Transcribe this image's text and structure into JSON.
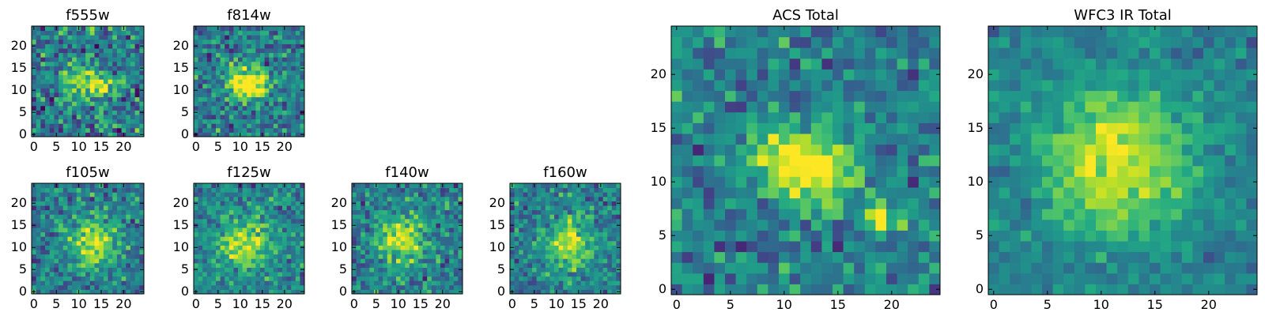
{
  "chart_data": [
    {
      "type": "heatmap",
      "title": "f555w",
      "xlim": [
        0,
        24
      ],
      "ylim": [
        0,
        24
      ],
      "xticks": [
        0,
        5,
        10,
        15,
        20
      ],
      "yticks": [
        0,
        5,
        10,
        15,
        20
      ],
      "source_centers": [
        [
          10,
          12,
          2.2
        ],
        [
          15,
          11,
          1.8
        ]
      ],
      "peak_intensity": 0.9,
      "noise_level": 0.28,
      "colormap": "viridis"
    },
    {
      "type": "heatmap",
      "title": "f814w",
      "xlim": [
        0,
        24
      ],
      "ylim": [
        0,
        24
      ],
      "xticks": [
        0,
        5,
        10,
        15,
        20
      ],
      "yticks": [
        0,
        5,
        10,
        15,
        20
      ],
      "source_centers": [
        [
          10.5,
          12,
          2.6
        ],
        [
          14,
          11,
          2.0
        ]
      ],
      "peak_intensity": 0.95,
      "noise_level": 0.25,
      "colormap": "viridis"
    },
    {
      "type": "heatmap",
      "title": "f105w",
      "xlim": [
        0,
        24
      ],
      "ylim": [
        0,
        24
      ],
      "xticks": [
        0,
        5,
        10,
        15,
        20
      ],
      "yticks": [
        0,
        5,
        10,
        15,
        20
      ],
      "source_centers": [
        [
          13,
          11,
          4.0
        ]
      ],
      "peak_intensity": 0.85,
      "noise_level": 0.22,
      "colormap": "viridis"
    },
    {
      "type": "heatmap",
      "title": "f125w",
      "xlim": [
        0,
        24
      ],
      "ylim": [
        0,
        24
      ],
      "xticks": [
        0,
        5,
        10,
        15,
        20
      ],
      "yticks": [
        0,
        5,
        10,
        15,
        20
      ],
      "source_centers": [
        [
          11,
          11,
          4.5
        ]
      ],
      "peak_intensity": 0.85,
      "noise_level": 0.22,
      "colormap": "viridis"
    },
    {
      "type": "heatmap",
      "title": "f140w",
      "xlim": [
        0,
        24
      ],
      "ylim": [
        0,
        24
      ],
      "xticks": [
        0,
        5,
        10,
        15,
        20
      ],
      "yticks": [
        0,
        5,
        10,
        15,
        20
      ],
      "source_centers": [
        [
          11,
          12,
          4.0
        ]
      ],
      "peak_intensity": 0.85,
      "noise_level": 0.22,
      "colormap": "viridis"
    },
    {
      "type": "heatmap",
      "title": "f160w",
      "xlim": [
        0,
        24
      ],
      "ylim": [
        0,
        24
      ],
      "xticks": [
        0,
        5,
        10,
        15,
        20
      ],
      "yticks": [
        0,
        5,
        10,
        15,
        20
      ],
      "source_centers": [
        [
          13,
          11,
          4.0
        ]
      ],
      "peak_intensity": 0.85,
      "noise_level": 0.22,
      "colormap": "viridis"
    },
    {
      "type": "heatmap",
      "title": "ACS Total",
      "xlim": [
        0,
        24
      ],
      "ylim": [
        0,
        24
      ],
      "xticks": [
        0,
        5,
        10,
        15,
        20
      ],
      "yticks": [
        0,
        5,
        10,
        15,
        20
      ],
      "source_centers": [
        [
          10,
          12,
          2.4
        ],
        [
          14.5,
          11,
          2.0
        ],
        [
          19,
          6.5,
          1.0
        ]
      ],
      "peak_intensity": 0.95,
      "noise_level": 0.22,
      "colormap": "viridis"
    },
    {
      "type": "heatmap",
      "title": "WFC3 IR Total",
      "xlim": [
        0,
        24
      ],
      "ylim": [
        0,
        24
      ],
      "xticks": [
        0,
        5,
        10,
        15,
        20
      ],
      "yticks": [
        0,
        5,
        10,
        15,
        20
      ],
      "source_centers": [
        [
          11.5,
          12,
          5.0
        ]
      ],
      "peak_intensity": 0.9,
      "noise_level": 0.12,
      "colormap": "viridis"
    }
  ],
  "colors": {
    "viridis": [
      "#440154",
      "#482475",
      "#414487",
      "#355f8d",
      "#2a788e",
      "#21918c",
      "#22a884",
      "#44bf70",
      "#7ad151",
      "#bddf26",
      "#fde725"
    ]
  }
}
